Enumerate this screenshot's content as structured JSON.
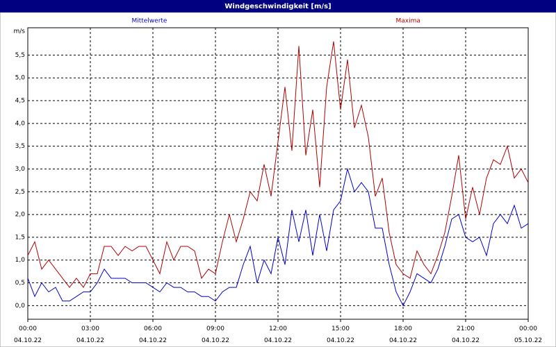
{
  "chart_data": {
    "type": "line",
    "title": "Windgeschwindigkeit [m/s]",
    "y_label": "m/s",
    "x": [
      0,
      20,
      40,
      60,
      80,
      100,
      120,
      140,
      160,
      180,
      200,
      220,
      240,
      260,
      280,
      300,
      320,
      340,
      360,
      380,
      400,
      420,
      440,
      460,
      480,
      500,
      520,
      540,
      560,
      580,
      600,
      620,
      640,
      660,
      680,
      700,
      720,
      740,
      760,
      780,
      800,
      820,
      840,
      860,
      880,
      900,
      920,
      940,
      960,
      980,
      1000,
      1020,
      1040,
      1060,
      1080,
      1100,
      1120,
      1140,
      1160,
      1180,
      1200,
      1220,
      1240,
      1260,
      1280,
      1300,
      1320,
      1340,
      1360,
      1380,
      1400,
      1420,
      1440
    ],
    "series": [
      {
        "name": "Mittelwerte",
        "color": "#0000cc",
        "values": [
          0.6,
          0.2,
          0.5,
          0.3,
          0.4,
          0.1,
          0.1,
          0.2,
          0.3,
          0.3,
          0.5,
          0.8,
          0.6,
          0.6,
          0.6,
          0.5,
          0.5,
          0.5,
          0.4,
          0.3,
          0.5,
          0.4,
          0.4,
          0.3,
          0.3,
          0.2,
          0.2,
          0.1,
          0.3,
          0.4,
          0.4,
          0.9,
          1.3,
          0.5,
          1.0,
          0.7,
          1.5,
          0.9,
          2.1,
          1.4,
          2.1,
          1.1,
          2.0,
          1.2,
          2.1,
          2.3,
          3.0,
          2.5,
          2.7,
          2.5,
          1.7,
          1.7,
          0.9,
          0.3,
          0.0,
          0.3,
          0.7,
          0.6,
          0.5,
          0.8,
          1.3,
          1.9,
          2.0,
          1.5,
          1.4,
          1.5,
          1.1,
          1.8,
          2.0,
          1.8,
          2.2,
          1.7,
          1.8
        ]
      },
      {
        "name": "Maxima",
        "color": "#b00000",
        "values": [
          1.1,
          1.4,
          0.8,
          1.0,
          0.8,
          0.6,
          0.4,
          0.6,
          0.4,
          0.7,
          0.7,
          1.3,
          1.3,
          1.1,
          1.3,
          1.2,
          1.3,
          1.3,
          1.0,
          0.7,
          1.4,
          1.0,
          1.3,
          1.3,
          1.2,
          0.6,
          0.8,
          0.7,
          1.4,
          2.0,
          1.4,
          1.9,
          2.5,
          2.3,
          3.1,
          2.4,
          3.6,
          4.8,
          3.4,
          5.7,
          3.3,
          4.3,
          2.6,
          4.8,
          5.8,
          4.3,
          5.4,
          3.9,
          4.4,
          3.7,
          2.4,
          2.8,
          1.6,
          0.9,
          0.7,
          0.6,
          1.2,
          0.9,
          0.7,
          1.1,
          1.6,
          2.4,
          3.3,
          1.9,
          2.6,
          2.0,
          2.8,
          3.2,
          3.1,
          3.5,
          2.8,
          3.0,
          2.7
        ]
      }
    ],
    "xlim": [
      0,
      1440
    ],
    "xticks": [
      {
        "value": 0,
        "label": "00:00\n04.10.22"
      },
      {
        "value": 180,
        "label": "03:00\n04.10.22"
      },
      {
        "value": 360,
        "label": "06:00\n04.10.22"
      },
      {
        "value": 540,
        "label": "09:00\n04.10.22"
      },
      {
        "value": 720,
        "label": "12:00\n04.10.22"
      },
      {
        "value": 900,
        "label": "15:00\n04.10.22"
      },
      {
        "value": 1080,
        "label": "18:00\n04.10.22"
      },
      {
        "value": 1260,
        "label": "21:00\n04.10.22"
      },
      {
        "value": 1440,
        "label": "00:00\n05.10.22"
      }
    ],
    "ylim": [
      -0.3,
      6.1
    ],
    "yticks": [
      {
        "value": 0,
        "label": "0,0"
      },
      {
        "value": 0.5,
        "label": "0,5"
      },
      {
        "value": 1,
        "label": "1,0"
      },
      {
        "value": 1.5,
        "label": "1,5"
      },
      {
        "value": 2,
        "label": "2,0"
      },
      {
        "value": 2.5,
        "label": "2,5"
      },
      {
        "value": 3,
        "label": "3,0"
      },
      {
        "value": 3.5,
        "label": "3,5"
      },
      {
        "value": 4,
        "label": "4,0"
      },
      {
        "value": 4.5,
        "label": "4,5"
      },
      {
        "value": 5,
        "label": "5,0"
      },
      {
        "value": 5.5,
        "label": "5,5"
      }
    ],
    "grid": true
  }
}
